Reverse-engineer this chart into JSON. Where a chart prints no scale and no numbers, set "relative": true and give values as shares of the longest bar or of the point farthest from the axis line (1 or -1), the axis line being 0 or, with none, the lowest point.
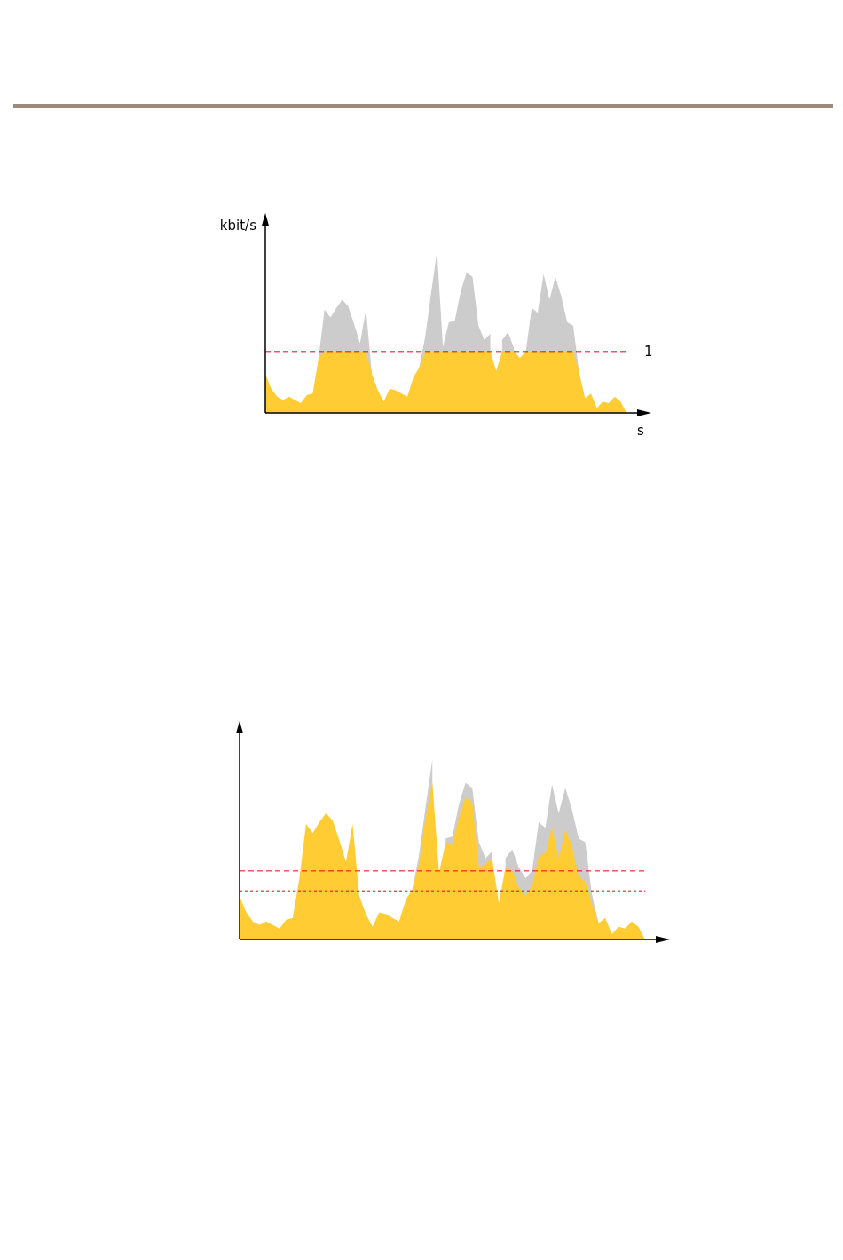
{
  "chart_data": [
    {
      "type": "area",
      "relative": true,
      "ylabel": "kbit/s",
      "xlabel": "s",
      "categories": [
        null,
        null,
        null,
        null,
        null,
        null,
        null,
        null,
        null,
        null,
        null,
        null,
        null,
        null,
        null,
        null,
        null,
        null,
        null,
        null,
        null,
        null,
        null,
        null,
        null,
        null,
        null,
        null,
        null,
        null,
        null,
        null,
        null,
        null,
        null,
        null,
        null,
        null,
        null,
        null,
        null,
        null,
        null,
        null,
        null,
        null,
        null,
        null,
        null,
        null,
        null,
        null,
        null,
        null,
        null,
        null,
        null,
        null,
        null,
        null,
        null,
        null
      ],
      "series": [
        {
          "color": "#cccccc",
          "values": [
            null,
            null,
            null,
            null,
            null,
            null,
            null,
            null,
            null,
            0.34,
            0.64,
            0.59,
            0.65,
            0.7,
            0.66,
            0.55,
            0.43,
            0.64,
            0.24,
            null,
            null,
            null,
            null,
            null,
            null,
            null,
            0.28,
            0.47,
            0.74,
            1,
            0.41,
            0.56,
            0.57,
            0.75,
            0.87,
            0.84,
            0.54,
            0.45,
            0.49,
            null,
            0.45,
            0.5,
            0.4,
            null,
            0.38,
            0.65,
            0.62,
            0.86,
            0.7,
            0.84,
            0.72,
            0.56,
            0.54,
            0.25,
            null,
            null,
            null,
            null,
            null,
            null,
            null,
            null
          ]
        },
        {
          "color": "#ffcc33",
          "values": [
            0.24,
            0.15,
            0.1,
            0.08,
            0.1,
            0.08,
            0.06,
            0.11,
            0.12,
            0.34,
            0.38,
            0.38,
            0.38,
            0.38,
            0.38,
            0.38,
            0.38,
            0.38,
            0.24,
            0.14,
            0.07,
            0.15,
            0.14,
            0.12,
            0.1,
            0.22,
            0.28,
            0.38,
            0.38,
            0.38,
            0.38,
            0.38,
            0.38,
            0.38,
            0.38,
            0.38,
            0.38,
            0.38,
            0.38,
            0.26,
            0.38,
            0.38,
            0.38,
            0.34,
            0.38,
            0.38,
            0.38,
            0.38,
            0.38,
            0.38,
            0.38,
            0.38,
            0.38,
            0.25,
            0.09,
            0.12,
            0.03,
            0.07,
            0.06,
            0.1,
            0.07,
            0
          ]
        }
      ],
      "ref_lines": [
        {
          "axis": "y",
          "value": 0.38,
          "color": "#e30613",
          "line_style": "dashed"
        }
      ],
      "annotations": [
        "1"
      ]
    },
    {
      "type": "area",
      "relative": true,
      "categories": [
        null,
        null,
        null,
        null,
        null,
        null,
        null,
        null,
        null,
        null,
        null,
        null,
        null,
        null,
        null,
        null,
        null,
        null,
        null,
        null,
        null,
        null,
        null,
        null,
        null,
        null,
        null,
        null,
        null,
        null,
        null,
        null,
        null,
        null,
        null,
        null,
        null,
        null,
        null,
        null,
        null,
        null,
        null,
        null,
        null,
        null,
        null,
        null,
        null,
        null,
        null,
        null,
        null,
        null,
        null,
        null,
        null,
        null,
        null,
        null,
        null,
        null
      ],
      "series": [
        {
          "color": "#cccccc",
          "values": [
            null,
            null,
            null,
            null,
            null,
            null,
            null,
            null,
            null,
            null,
            null,
            null,
            null,
            null,
            null,
            null,
            null,
            null,
            null,
            null,
            null,
            null,
            null,
            null,
            null,
            null,
            0.28,
            0.47,
            0.74,
            1,
            null,
            0.56,
            0.57,
            0.75,
            0.87,
            0.84,
            0.54,
            0.45,
            0.49,
            null,
            0.45,
            0.5,
            0.4,
            0.34,
            0.38,
            0.65,
            0.62,
            0.86,
            0.7,
            0.84,
            0.72,
            0.56,
            0.54,
            0.25,
            0.09,
            null,
            null,
            null,
            null,
            null,
            null,
            null
          ]
        },
        {
          "color": "#ffcc33",
          "values": [
            0.24,
            0.15,
            0.1,
            0.08,
            0.1,
            0.08,
            0.06,
            0.11,
            0.12,
            0.34,
            0.64,
            0.59,
            0.65,
            0.7,
            0.66,
            0.55,
            0.43,
            0.64,
            0.24,
            0.14,
            0.07,
            0.15,
            0.14,
            0.12,
            0.1,
            0.22,
            0.28,
            0.42,
            0.68,
            0.87,
            0.37,
            0.54,
            0.53,
            0.68,
            0.79,
            0.76,
            0.4,
            0.42,
            0.45,
            0.2,
            0.4,
            0.38,
            0.29,
            0.24,
            0.3,
            0.46,
            0.48,
            0.62,
            0.45,
            0.61,
            0.52,
            0.35,
            0.32,
            0.2,
            0.09,
            0.12,
            0.03,
            0.07,
            0.06,
            0.1,
            0.07,
            0
          ]
        }
      ],
      "ref_lines": [
        {
          "axis": "y",
          "value": 0.38,
          "color": "#e30613",
          "line_style": "dashed"
        },
        {
          "axis": "y",
          "value": 0.27,
          "color": "#e30613",
          "line_style": "dotted"
        }
      ]
    }
  ]
}
